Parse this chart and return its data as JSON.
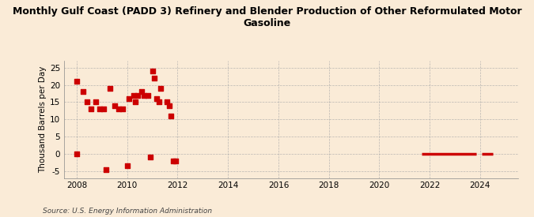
{
  "title": "Monthly Gulf Coast (PADD 3) Refinery and Blender Production of Other Reformulated Motor\nGasoline",
  "ylabel": "Thousand Barrels per Day",
  "source": "Source: U.S. Energy Information Administration",
  "background_color": "#faebd7",
  "plot_bg_color": "#faebd7",
  "marker_color": "#cc0000",
  "marker_size": 18,
  "ylim": [
    -7,
    27
  ],
  "yticks": [
    -5,
    0,
    5,
    10,
    15,
    20,
    25
  ],
  "scatter_x": [
    2008.0,
    2008.0,
    2008.25,
    2008.42,
    2008.58,
    2008.75,
    2008.92,
    2009.08,
    2009.17,
    2009.33,
    2009.5,
    2009.67,
    2009.83,
    2010.0,
    2010.08,
    2010.25,
    2010.33,
    2010.42,
    2010.58,
    2010.67,
    2010.83,
    2010.92,
    2011.0,
    2011.08,
    2011.17,
    2011.25,
    2011.33,
    2011.58,
    2011.67,
    2011.75,
    2011.83,
    2011.92
  ],
  "scatter_y": [
    21,
    0,
    18,
    15,
    13,
    15,
    13,
    13,
    -4.5,
    19,
    14,
    13,
    13,
    -3.5,
    16,
    17,
    15,
    17,
    18,
    17,
    17,
    -1,
    24,
    22,
    16,
    15,
    19,
    15,
    14,
    11,
    -2,
    -2
  ],
  "line_segments": [
    {
      "x_start": 2021.67,
      "x_end": 2023.83,
      "y": 0
    },
    {
      "x_start": 2024.08,
      "x_end": 2024.5,
      "y": 0
    }
  ],
  "xticks": [
    2008,
    2010,
    2012,
    2014,
    2016,
    2018,
    2020,
    2022,
    2024
  ],
  "xlim": [
    2007.5,
    2025.5
  ]
}
